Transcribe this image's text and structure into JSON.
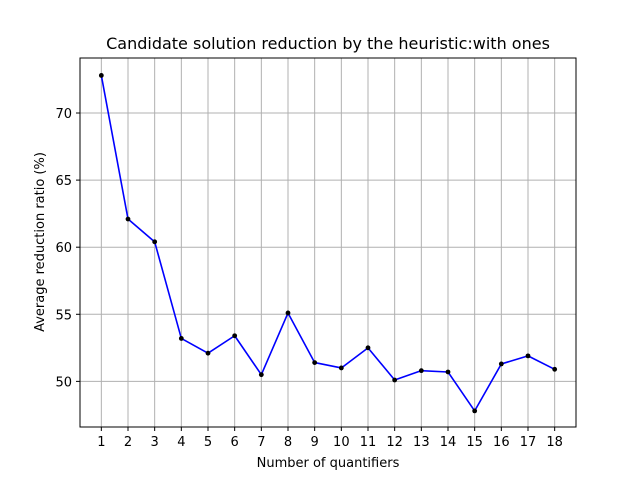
{
  "chart_data": {
    "type": "line",
    "title": "Candidate solution reduction by the heuristic:with ones",
    "xlabel": "Number of quantifiers",
    "ylabel": "Average reduction ratio (%)",
    "x": [
      1,
      2,
      3,
      4,
      5,
      6,
      7,
      8,
      9,
      10,
      11,
      12,
      13,
      14,
      15,
      16,
      17,
      18
    ],
    "x_ticks": [
      "1",
      "2",
      "3",
      "4",
      "5",
      "6",
      "7",
      "8",
      "9",
      "10",
      "11",
      "12",
      "13",
      "14",
      "15",
      "16",
      "17",
      "18"
    ],
    "xlim": [
      0.2,
      18.8
    ],
    "y_ticks": [
      "50",
      "55",
      "60",
      "65",
      "70"
    ],
    "ylim": [
      46.6,
      74.1
    ],
    "grid": true,
    "series": [
      {
        "values": [
          72.8,
          62.1,
          60.4,
          53.2,
          52.1,
          53.4,
          50.5,
          55.1,
          51.4,
          51.0,
          52.5,
          50.1,
          50.8,
          50.7,
          47.8,
          51.3,
          51.9,
          50.9
        ],
        "color": "#0000ff",
        "marker_color": "#000000"
      }
    ]
  }
}
